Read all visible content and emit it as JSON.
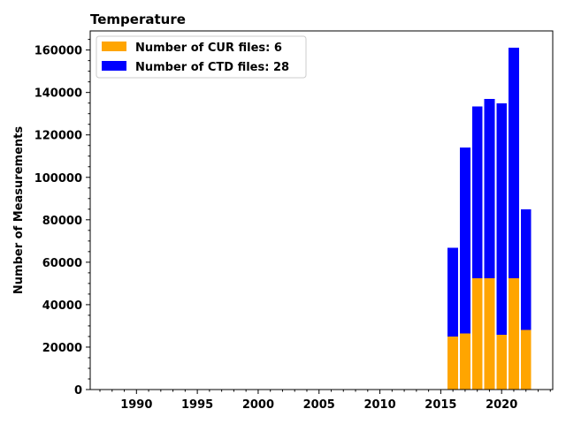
{
  "chart_data": {
    "type": "bar",
    "stacked": true,
    "title": "Temperature",
    "xlabel": "",
    "ylabel": "Number of Measurements",
    "xlim": [
      1986.2,
      2024.2
    ],
    "ylim": [
      0,
      169000
    ],
    "xticks": [
      1990,
      1995,
      2000,
      2005,
      2010,
      2015,
      2020
    ],
    "yticks": [
      0,
      20000,
      40000,
      60000,
      80000,
      100000,
      120000,
      140000,
      160000
    ],
    "bin_width": 0.86,
    "x": [
      2016,
      2017,
      2018,
      2019,
      2020,
      2021,
      2022
    ],
    "series": [
      {
        "name": "Number of CUR files: 6",
        "color": "#ffa500",
        "values": [
          25000,
          26500,
          52500,
          52500,
          25800,
          52500,
          28200
        ]
      },
      {
        "name": "Number of CTD files: 28",
        "color": "#0000ff",
        "values": [
          41800,
          87500,
          81000,
          84500,
          109000,
          108500,
          56800
        ]
      }
    ],
    "legend_position": "top-left",
    "grid": false
  }
}
